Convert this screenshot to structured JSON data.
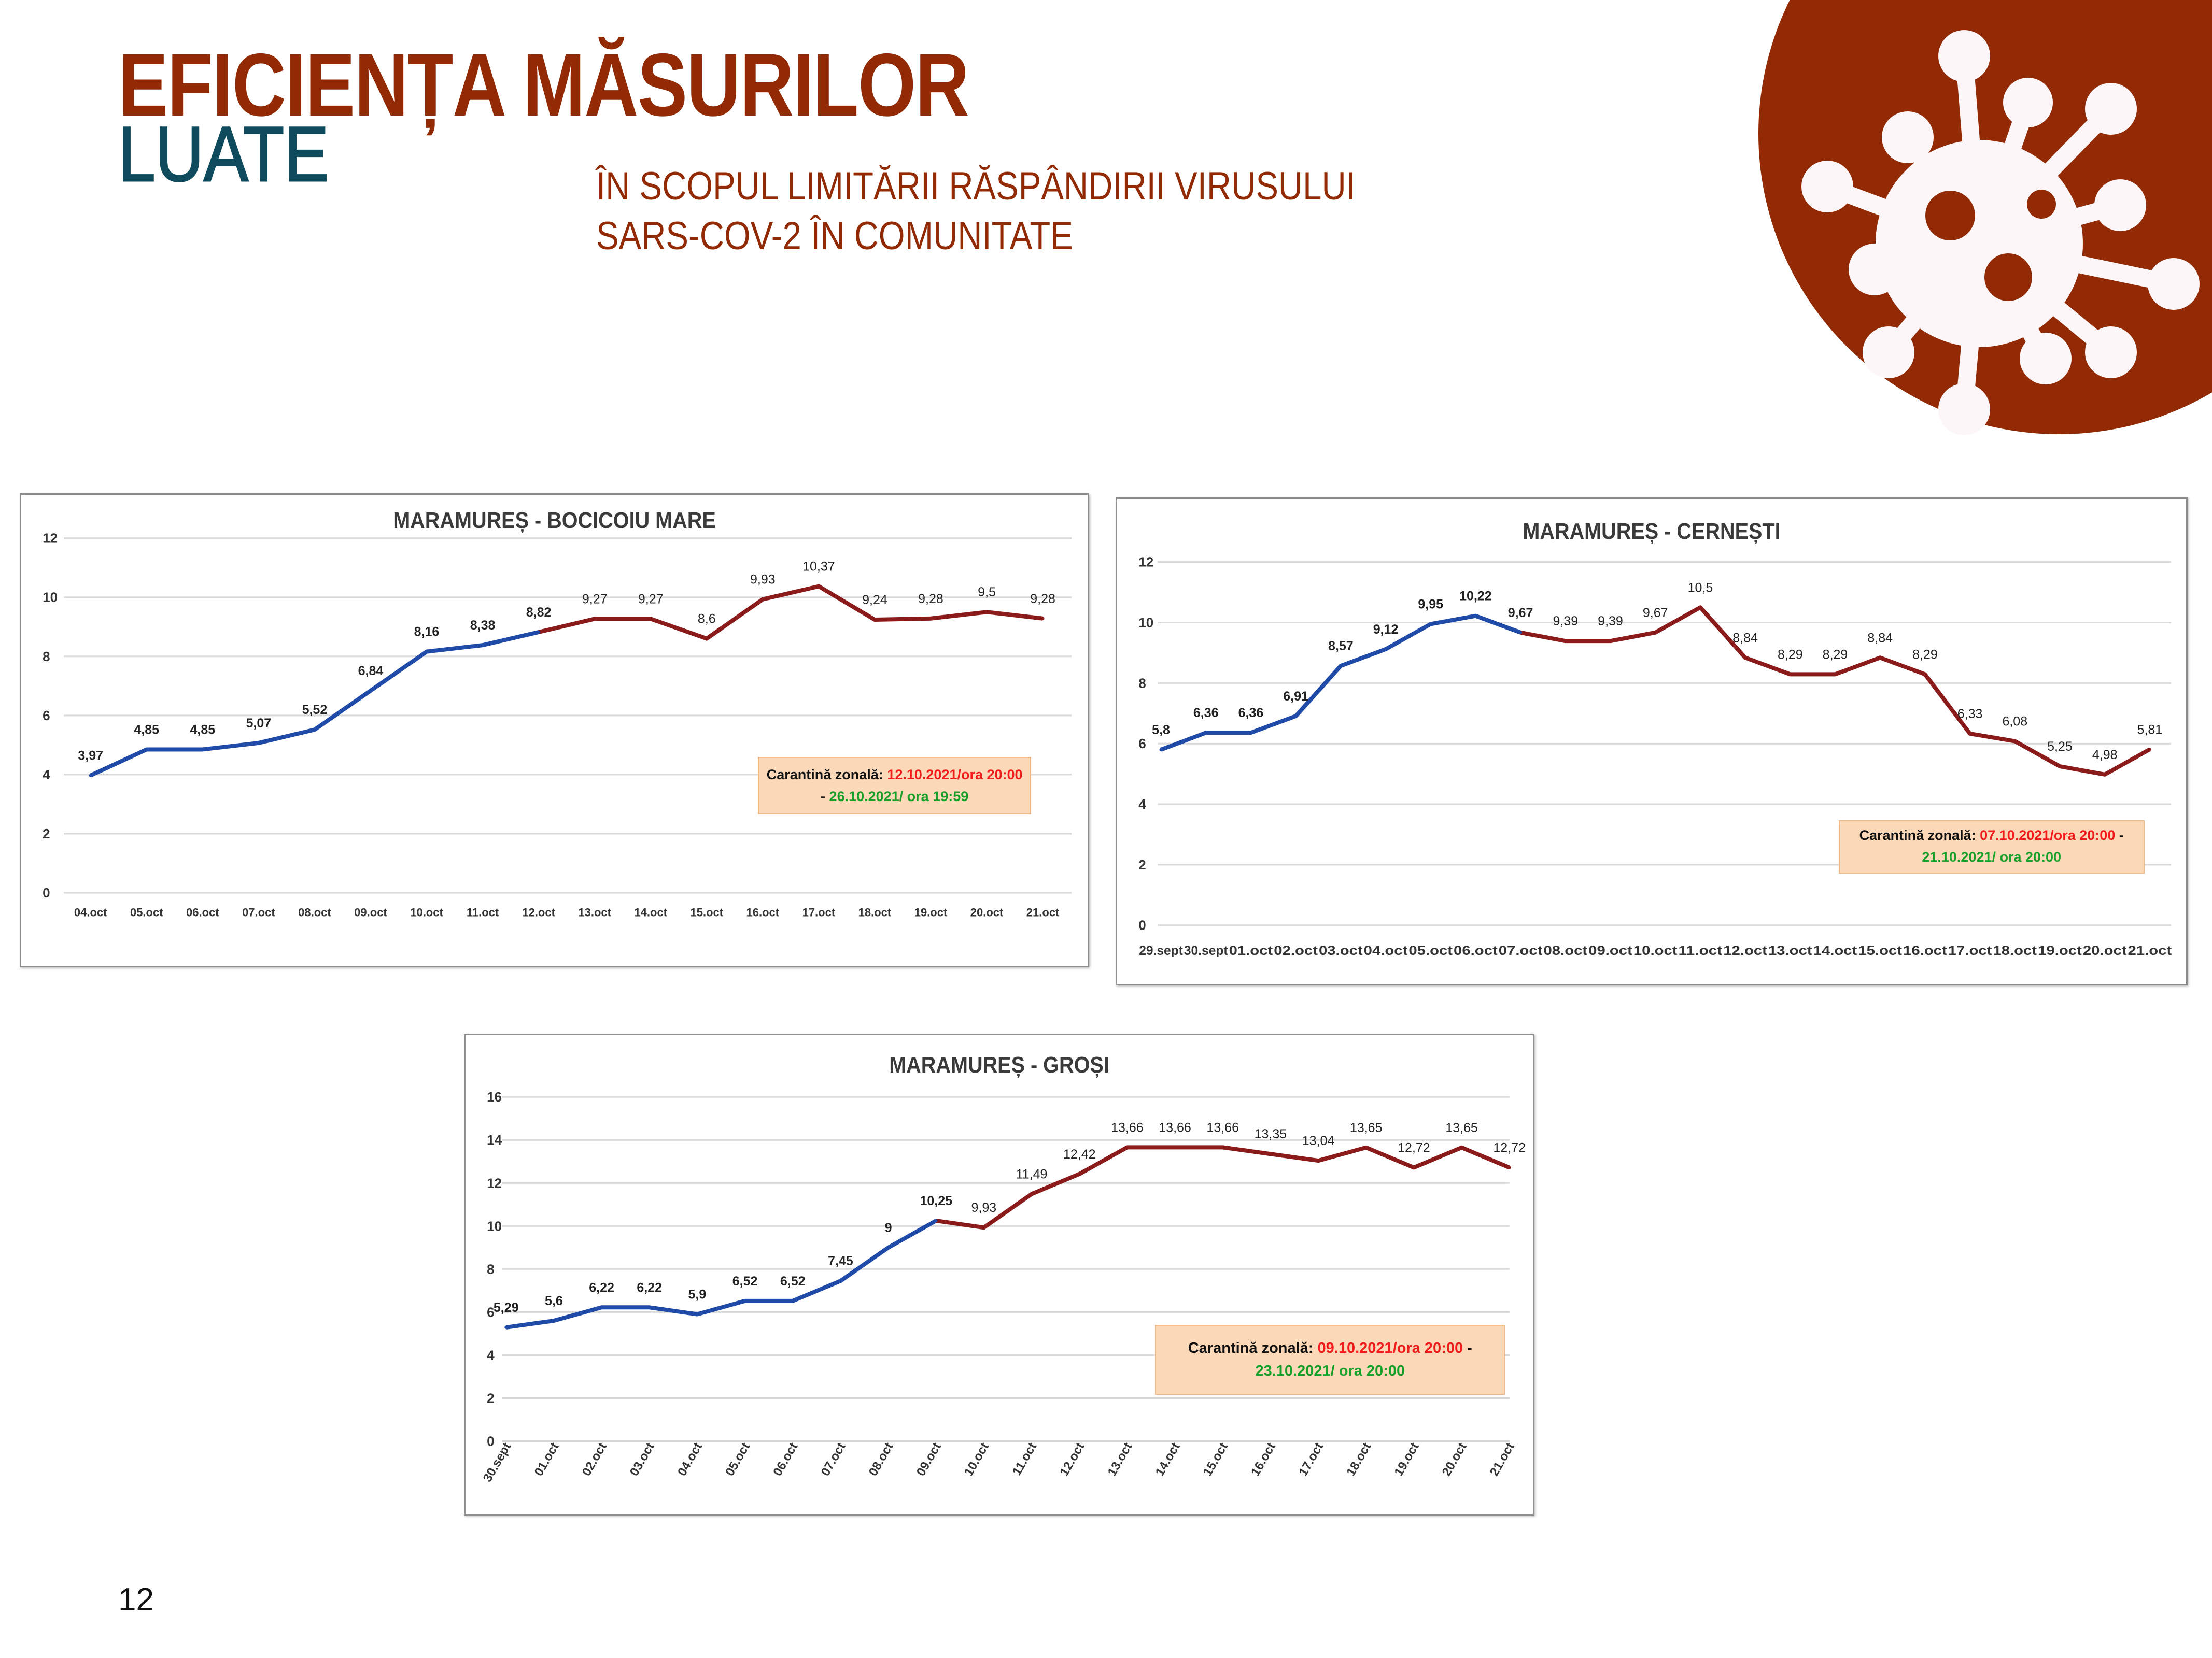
{
  "header": {
    "title_line1": "EFICIENȚA MĂSURILOR",
    "title_line2": "LUATE",
    "subtitle_line1": "ÎN SCOPUL LIMITĂRII RĂSPÂNDIRII VIRUSULUI",
    "subtitle_line2": "SARS-COV-2 ÎN COMUNITATE"
  },
  "badge": {
    "icon": "virus-icon",
    "color": "#922b05"
  },
  "page_number": "12",
  "colors": {
    "before": "#1f4aa8",
    "during": "#8b1a1a",
    "note_bg": "#fbd8b8"
  },
  "chart_data": [
    {
      "type": "line",
      "title": "MARAMUREȘ - BOCICOIU MARE",
      "categories": [
        "04.oct",
        "05.oct",
        "06.oct",
        "07.oct",
        "08.oct",
        "09.oct",
        "10.oct",
        "11.oct",
        "12.oct",
        "13.oct",
        "14.oct",
        "15.oct",
        "16.oct",
        "17.oct",
        "18.oct",
        "19.oct",
        "20.oct",
        "21.oct"
      ],
      "values": [
        3.97,
        4.85,
        4.85,
        5.07,
        5.52,
        6.84,
        8.16,
        8.38,
        8.82,
        9.27,
        9.27,
        8.6,
        9.93,
        10.37,
        9.24,
        9.28,
        9.5,
        9.28
      ],
      "value_labels": [
        "3,97",
        "4,85",
        "4,85",
        "5,07",
        "5,52",
        "6,84",
        "8,16",
        "8,38",
        "8,82",
        "9,27",
        "9,27",
        "8,6",
        "9,93",
        "10,37",
        "9,24",
        "9,28",
        "9,5",
        "9,28"
      ],
      "quarantine_start_index": 8,
      "ylim": [
        0,
        12
      ],
      "yticks": [
        "0",
        "2",
        "4",
        "6",
        "8",
        "10",
        "12"
      ],
      "grid": true,
      "note": {
        "label": "Carantină zonală:",
        "start": "12.10.2021/ora 20:00",
        "sep": " - ",
        "end": "26.10.2021/ ora 19:59"
      }
    },
    {
      "type": "line",
      "title": "MARAMUREȘ - CERNEȘTI",
      "categories": [
        "29.sept",
        "30.sept",
        "01.oct",
        "02.oct",
        "03.oct",
        "04.oct",
        "05.oct",
        "06.oct",
        "07.oct",
        "08.oct",
        "09.oct",
        "10.oct",
        "11.oct",
        "12.oct",
        "13.oct",
        "14.oct",
        "15.oct",
        "16.oct",
        "17.oct",
        "18.oct",
        "19.oct",
        "20.oct",
        "21.oct"
      ],
      "values": [
        5.8,
        6.36,
        6.36,
        6.91,
        8.57,
        9.12,
        9.95,
        10.22,
        9.67,
        9.39,
        9.39,
        9.67,
        10.5,
        8.84,
        8.29,
        8.29,
        8.84,
        8.29,
        6.33,
        6.08,
        5.25,
        4.98,
        5.81
      ],
      "value_labels": [
        "5,8",
        "6,36",
        "6,36",
        "6,91",
        "8,57",
        "9,12",
        "9,95",
        "10,22",
        "9,67",
        "9,39",
        "9,39",
        "9,67",
        "10,5",
        "8,84",
        "8,29",
        "8,29",
        "8,84",
        "8,29",
        "6,33",
        "6,08",
        "5,25",
        "4,98",
        "5,81"
      ],
      "quarantine_start_index": 8,
      "ylim": [
        0,
        12
      ],
      "yticks": [
        "0",
        "2",
        "4",
        "6",
        "8",
        "10",
        "12"
      ],
      "grid": true,
      "note": {
        "label": "Carantină zonală:",
        "start": "07.10.2021/ora 20:00",
        "sep": " - ",
        "end": "21.10.2021/ ora 20:00"
      }
    },
    {
      "type": "line",
      "title": "MARAMUREȘ - GROȘI",
      "categories": [
        "30.sept",
        "01.oct",
        "02.oct",
        "03.oct",
        "04.oct",
        "05.oct",
        "06.oct",
        "07.oct",
        "08.oct",
        "09.oct",
        "10.oct",
        "11.oct",
        "12.oct",
        "13.oct",
        "14.oct",
        "15.oct",
        "16.oct",
        "17.oct",
        "18.oct",
        "19.oct",
        "20.oct",
        "21.oct"
      ],
      "values": [
        5.29,
        5.6,
        6.22,
        6.22,
        5.9,
        6.52,
        6.52,
        7.45,
        9,
        10.25,
        9.93,
        11.49,
        12.42,
        13.66,
        13.66,
        13.66,
        13.35,
        13.04,
        13.65,
        12.72,
        13.65,
        12.72
      ],
      "value_labels": [
        "5,29",
        "5,6",
        "6,22",
        "6,22",
        "5,9",
        "6,52",
        "6,52",
        "7,45",
        "9",
        "10,25",
        "9,93",
        "11,49",
        "12,42",
        "13,66",
        "13,66",
        "13,66",
        "13,35",
        "13,04",
        "13,65",
        "12,72",
        "13,65",
        "12,72"
      ],
      "quarantine_start_index": 9,
      "ylim": [
        0,
        16
      ],
      "yticks": [
        "0",
        "2",
        "4",
        "6",
        "8",
        "10",
        "12",
        "14",
        "16"
      ],
      "grid": true,
      "note": {
        "label": "Carantină zonală:",
        "start": "09.10.2021/ora 20:00",
        "sep": " - ",
        "end": "23.10.2021/ ora 20:00"
      }
    }
  ]
}
